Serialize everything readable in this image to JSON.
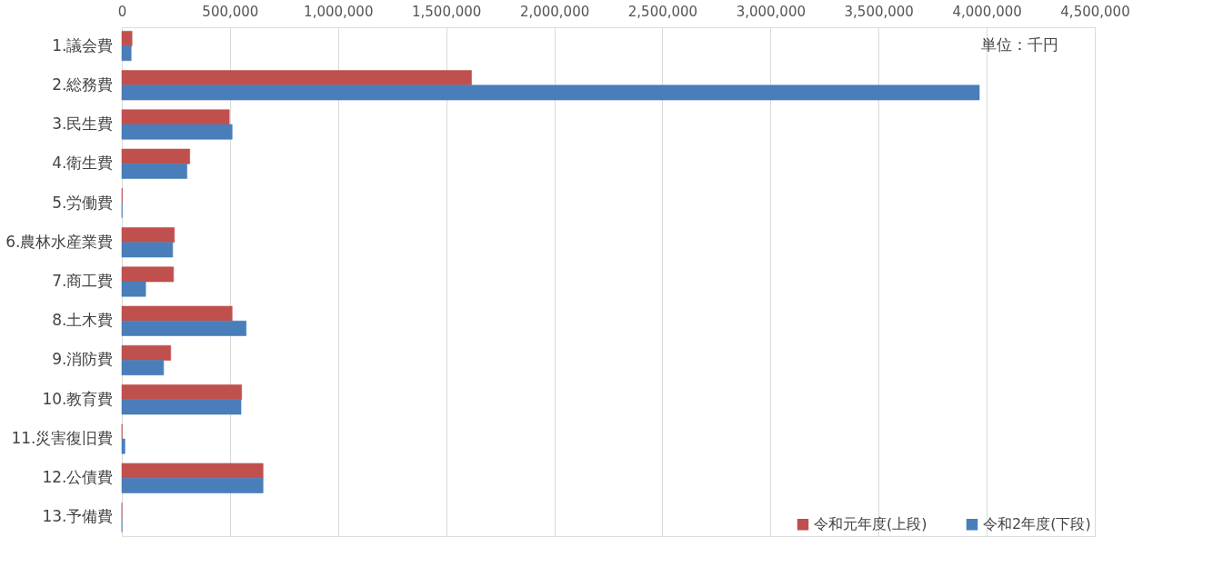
{
  "chart_data": {
    "type": "bar",
    "orientation": "horizontal",
    "categories": [
      "1.議会費",
      "2.総務費",
      "3.民生費",
      "4.衛生費",
      "5.労働費",
      "6.農林水産業費",
      "7.商工費",
      "8.土木費",
      "9.消防費",
      "10.教育費",
      "11.災害復旧費",
      "12.公債費",
      "13.予備費"
    ],
    "series": [
      {
        "name": "令和元年度(上段)",
        "color": "#c0504d",
        "values": [
          47000,
          1617000,
          497000,
          314000,
          2000,
          243000,
          239000,
          510000,
          226000,
          554000,
          1000,
          653000,
          0
        ]
      },
      {
        "name": "令和2年度(下段)",
        "color": "#4a7ebb",
        "values": [
          43000,
          3966000,
          510000,
          301000,
          1000,
          235000,
          110000,
          575000,
          193000,
          551000,
          14000,
          653000,
          0
        ]
      }
    ],
    "xlim": [
      0,
      4500000
    ],
    "xticks": [
      {
        "value": 0,
        "label": "0"
      },
      {
        "value": 500000,
        "label": "500,000"
      },
      {
        "value": 1000000,
        "label": "1,000,000"
      },
      {
        "value": 1500000,
        "label": "1,500,000"
      },
      {
        "value": 2000000,
        "label": "2,000,000"
      },
      {
        "value": 2500000,
        "label": "2,500,000"
      },
      {
        "value": 3000000,
        "label": "3,000,000"
      },
      {
        "value": 3500000,
        "label": "3,500,000"
      },
      {
        "value": 4000000,
        "label": "4,000,000"
      },
      {
        "value": 4500000,
        "label": "4,500,000"
      }
    ],
    "grid": "x",
    "legend": "bottom right",
    "annotations": [
      "単位：千円"
    ]
  }
}
